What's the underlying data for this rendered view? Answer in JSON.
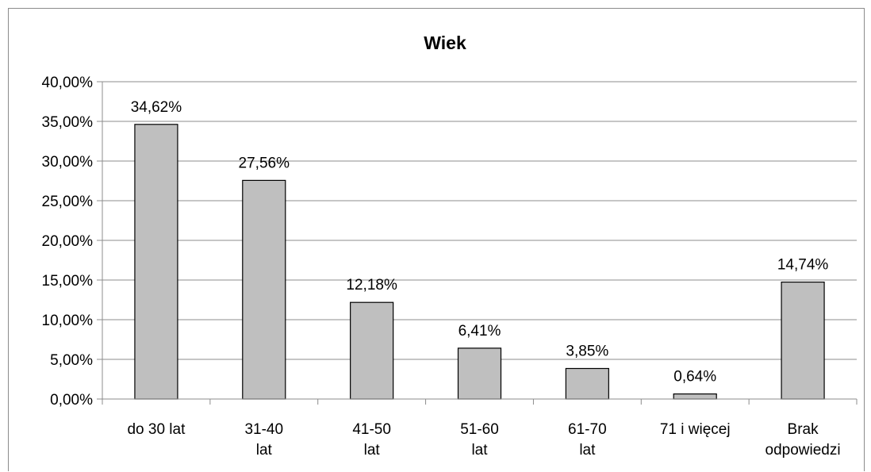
{
  "chart_data": {
    "type": "bar",
    "title": "Wiek",
    "xlabel": "",
    "ylabel": "",
    "categories": [
      "do 30 lat",
      "31-40 lat",
      "41-50 lat",
      "51-60 lat",
      "61-70 lat",
      "71 i więcej",
      "Brak odpowiedzi"
    ],
    "values": [
      34.62,
      27.56,
      12.18,
      6.41,
      3.85,
      0.64,
      14.74
    ],
    "data_labels": [
      "34,62%",
      "27,56%",
      "12,18%",
      "6,41%",
      "3,85%",
      "0,64%",
      "14,74%"
    ],
    "ylim": [
      0,
      40
    ],
    "y_ticks": [
      0,
      5,
      10,
      15,
      20,
      25,
      30,
      35,
      40
    ],
    "y_tick_labels": [
      "0,00%",
      "5,00%",
      "10,00%",
      "15,00%",
      "20,00%",
      "25,00%",
      "30,00%",
      "35,00%",
      "40,00%"
    ],
    "grid": true,
    "legend": "none",
    "colors": {
      "bar_fill": "#bfbfbf",
      "bar_stroke": "#000000",
      "grid": "#8c8c8c",
      "axis": "#8c8c8c"
    }
  }
}
